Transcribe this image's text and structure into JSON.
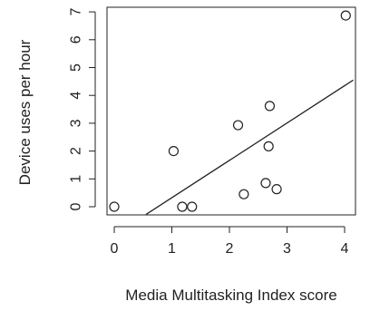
{
  "chart_data": {
    "type": "scatter",
    "title": "",
    "xlabel": "Media Multitasking Index score",
    "ylabel": "Device uses per hour",
    "xlim": [
      0,
      4
    ],
    "ylim": [
      0,
      7
    ],
    "x_ticks": [
      0,
      1,
      2,
      3,
      4
    ],
    "y_ticks": [
      0,
      1,
      2,
      3,
      4,
      5,
      6,
      7
    ],
    "grid": false,
    "points": [
      {
        "x": 0.0,
        "y": 0.0
      },
      {
        "x": 1.03,
        "y": 2.0
      },
      {
        "x": 1.18,
        "y": 0.0
      },
      {
        "x": 1.35,
        "y": 0.0
      },
      {
        "x": 2.15,
        "y": 2.93
      },
      {
        "x": 2.25,
        "y": 0.45
      },
      {
        "x": 2.63,
        "y": 0.85
      },
      {
        "x": 2.68,
        "y": 2.17
      },
      {
        "x": 2.7,
        "y": 3.62
      },
      {
        "x": 2.82,
        "y": 0.63
      },
      {
        "x": 4.02,
        "y": 6.87
      }
    ],
    "fit_line": {
      "x": [
        0.55,
        4.15
      ],
      "y": [
        -0.28,
        4.55
      ]
    }
  }
}
